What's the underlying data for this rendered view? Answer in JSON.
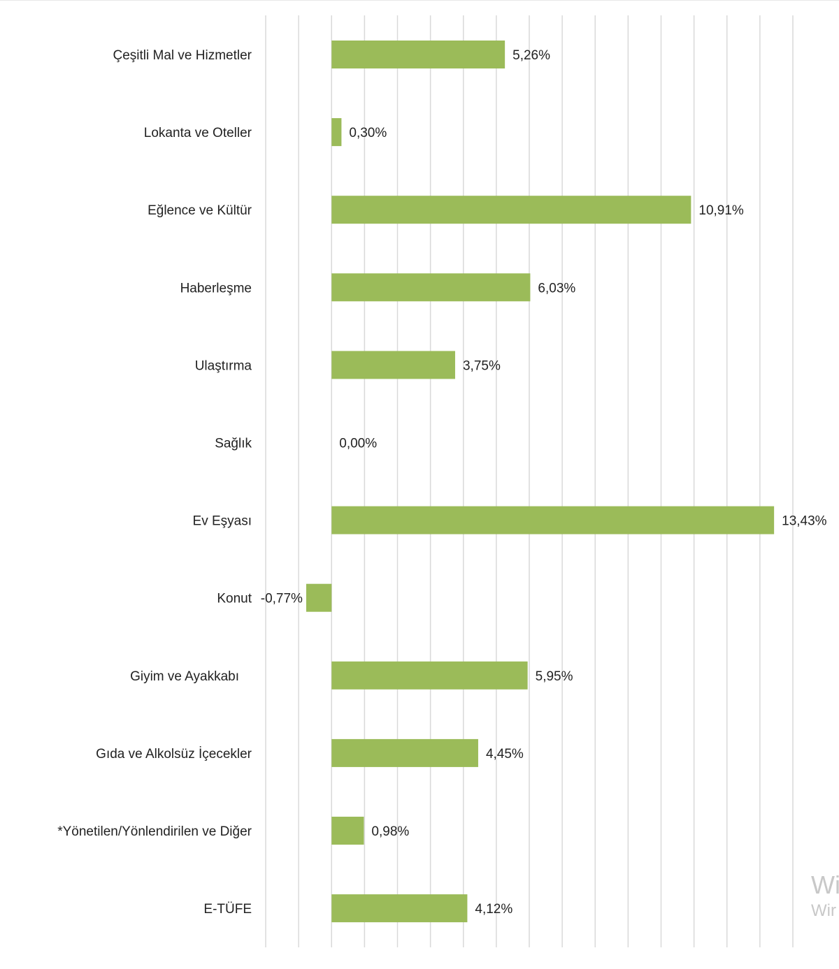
{
  "chart_data": {
    "type": "bar",
    "orientation": "horizontal",
    "title": "",
    "xlabel": "",
    "ylabel": "",
    "xlim": [
      -2,
      14
    ],
    "grid": true,
    "legend": "none",
    "bar_color": "#9BBB59",
    "gridline_color": "#d9d9d9",
    "categories": [
      "Çeşitli Mal ve Hizmetler",
      "Lokanta ve Oteller",
      "Eğlence ve Kültür",
      "Haberleşme",
      "Ulaştırma",
      "Sağlık",
      "Ev Eşyası",
      "Konut",
      "Giyim ve Ayakkabı",
      "Gıda ve Alkolsüz İçecekler",
      "*Yönetilen/Yönlendirilen ve Diğer",
      "E-TÜFE"
    ],
    "values": [
      5.26,
      0.3,
      10.91,
      6.03,
      3.75,
      0.0,
      13.43,
      -0.77,
      5.95,
      4.45,
      0.98,
      4.12
    ],
    "value_labels": [
      "5,26%",
      "0,30%",
      "10,91%",
      "6,03%",
      "3,75%",
      "0,00%",
      "13,43%",
      "-0,77%",
      "5,95%",
      "4,45%",
      "0,98%",
      "4,12%"
    ]
  },
  "watermark": {
    "line1": "Wi",
    "line2": "Wir"
  }
}
